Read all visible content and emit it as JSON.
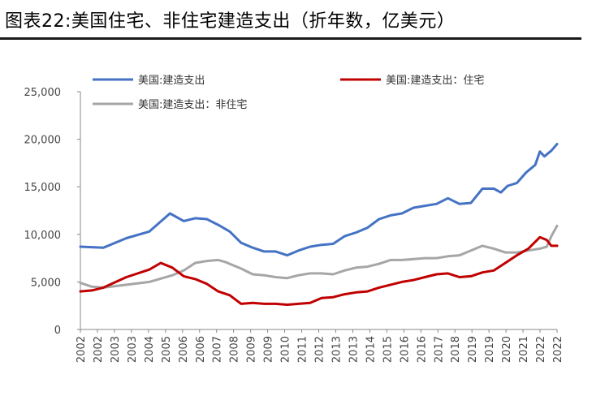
{
  "header": {
    "title": "图表22:美国住宅、非住宅建造支出（折年数，亿美元）"
  },
  "colors": {
    "total": "#4472C4",
    "residential": "#C00000",
    "nonresidential": "#A6A6A6",
    "axis": "#888888"
  },
  "chart_data": {
    "type": "line",
    "title": "图表22:美国住宅、非住宅建造支出（折年数，亿美元）",
    "xlabel": "",
    "ylabel": "",
    "ylim": [
      0,
      25000
    ],
    "xlim": [
      2002.0,
      2022.75
    ],
    "y_ticks": [
      0,
      5000,
      10000,
      15000,
      20000,
      25000
    ],
    "y_tick_labels": [
      "0",
      "5,000",
      "10,000",
      "15,000",
      "20,000",
      "25,000"
    ],
    "x_tick_labels": [
      "2002",
      "2002",
      "2003",
      "2003",
      "2004",
      "2005",
      "2006",
      "2006",
      "2007",
      "2008",
      "2009",
      "2009",
      "2010",
      "2011",
      "2012",
      "2013",
      "2013",
      "2014",
      "2015",
      "2016",
      "2016",
      "2017",
      "2018",
      "2019",
      "2019",
      "2020",
      "2021",
      "2022",
      "2022"
    ],
    "grid": false,
    "legend_position": "top",
    "series": [
      {
        "name": "美国:建造支出",
        "color_key": "total",
        "x": [
          2002.0,
          2003.0,
          2004.0,
          2005.0,
          2005.9,
          2006.5,
          2007.0,
          2007.5,
          2008.0,
          2008.5,
          2009.0,
          2009.5,
          2010.0,
          2010.5,
          2011.0,
          2011.5,
          2012.0,
          2012.5,
          2013.0,
          2013.5,
          2014.0,
          2014.5,
          2015.0,
          2015.5,
          2016.0,
          2016.5,
          2017.0,
          2017.5,
          2018.0,
          2018.5,
          2019.0,
          2019.5,
          2020.0,
          2020.3,
          2020.6,
          2021.0,
          2021.4,
          2021.8,
          2022.0,
          2022.2,
          2022.5,
          2022.75
        ],
        "y": [
          8700,
          8600,
          9600,
          10300,
          12200,
          11400,
          11700,
          11600,
          11000,
          10300,
          9100,
          8600,
          8200,
          8200,
          7800,
          8300,
          8700,
          8900,
          9000,
          9800,
          10200,
          10700,
          11600,
          12000,
          12200,
          12800,
          13000,
          13200,
          13800,
          13200,
          13300,
          14800,
          14800,
          14400,
          15100,
          15400,
          16500,
          17300,
          18700,
          18200,
          18800,
          19500
        ]
      },
      {
        "name": "美国:建造支出：住宅",
        "color_key": "residential",
        "x": [
          2002.0,
          2002.5,
          2003.0,
          2004.0,
          2005.0,
          2005.5,
          2006.0,
          2006.5,
          2007.0,
          2007.5,
          2008.0,
          2008.5,
          2009.0,
          2009.5,
          2010.0,
          2010.5,
          2011.0,
          2011.5,
          2012.0,
          2012.5,
          2013.0,
          2013.5,
          2014.0,
          2014.5,
          2015.0,
          2015.5,
          2016.0,
          2016.5,
          2017.0,
          2017.5,
          2018.0,
          2018.5,
          2019.0,
          2019.5,
          2020.0,
          2020.5,
          2021.0,
          2021.5,
          2022.0,
          2022.3,
          2022.5,
          2022.75
        ],
        "y": [
          4000,
          4100,
          4400,
          5500,
          6300,
          7000,
          6500,
          5600,
          5300,
          4800,
          4000,
          3600,
          2700,
          2800,
          2700,
          2700,
          2600,
          2700,
          2800,
          3300,
          3400,
          3700,
          3900,
          4000,
          4400,
          4700,
          5000,
          5200,
          5500,
          5800,
          5900,
          5500,
          5600,
          6000,
          6200,
          7000,
          7800,
          8500,
          9700,
          9400,
          8800,
          8800
        ]
      },
      {
        "name": "美国:建造支出：非住宅",
        "color_key": "nonresidential",
        "x": [
          2002.0,
          2002.5,
          2003.0,
          2004.0,
          2005.0,
          2006.0,
          2006.5,
          2007.0,
          2007.5,
          2008.0,
          2008.3,
          2008.7,
          2009.0,
          2009.5,
          2010.0,
          2010.5,
          2011.0,
          2011.5,
          2012.0,
          2012.5,
          2013.0,
          2013.5,
          2014.0,
          2014.5,
          2015.0,
          2015.5,
          2016.0,
          2016.5,
          2017.0,
          2017.5,
          2018.0,
          2018.5,
          2019.0,
          2019.5,
          2020.0,
          2020.5,
          2021.0,
          2021.5,
          2022.0,
          2022.3,
          2022.5,
          2022.75
        ],
        "y": [
          4900,
          4500,
          4400,
          4700,
          5000,
          5700,
          6200,
          7000,
          7200,
          7300,
          7100,
          6700,
          6400,
          5800,
          5700,
          5500,
          5400,
          5700,
          5900,
          5900,
          5800,
          6200,
          6500,
          6600,
          6900,
          7300,
          7300,
          7400,
          7500,
          7500,
          7700,
          7800,
          8300,
          8800,
          8500,
          8100,
          8100,
          8300,
          8500,
          8700,
          9800,
          10900
        ]
      }
    ]
  }
}
